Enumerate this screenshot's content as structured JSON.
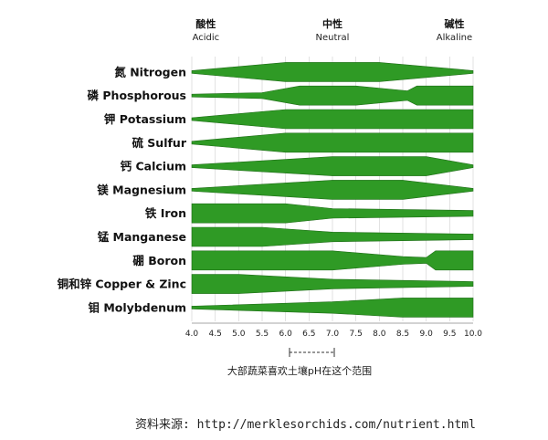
{
  "chart_data": {
    "type": "area",
    "title": "",
    "xlabel": "",
    "ylabel": "",
    "xlim": [
      4.0,
      10.0
    ],
    "x_ticks": [
      "4.0",
      "4.5",
      "5.0",
      "5.5",
      "6.0",
      "6.5",
      "7.0",
      "7.5",
      "8.0",
      "8.5",
      "9.0",
      "9.5",
      "10.0"
    ],
    "zones": [
      {
        "cn": "酸性",
        "en": "Acidic",
        "ph": 4.3
      },
      {
        "cn": "中性",
        "en": "Neutral",
        "ph": 7.0
      },
      {
        "cn": "碱性",
        "en": "Alkaline",
        "ph": 9.6
      }
    ],
    "range_caption": "大部蔬菜喜欢土壤pH在这个范围",
    "range_bracket": [
      5.5,
      7.0
    ],
    "grid": true,
    "series": [
      {
        "name": "氮 Nitrogen",
        "profile": [
          [
            4.0,
            0
          ],
          [
            6.0,
            1.0
          ],
          [
            8.0,
            1.0
          ],
          [
            10.0,
            0
          ]
        ]
      },
      {
        "name": "磷 Phosphorous",
        "profile": [
          [
            4.0,
            0
          ],
          [
            5.5,
            0.3
          ],
          [
            6.3,
            1.0
          ],
          [
            7.5,
            1.0
          ],
          [
            8.6,
            0.5
          ],
          [
            8.8,
            1.0
          ],
          [
            10.0,
            1.0
          ]
        ]
      },
      {
        "name": "钾 Potassium",
        "profile": [
          [
            4.0,
            0
          ],
          [
            6.0,
            1.0
          ],
          [
            10.0,
            1.0
          ]
        ]
      },
      {
        "name": "硫 Sulfur",
        "profile": [
          [
            4.0,
            0
          ],
          [
            6.0,
            1.0
          ],
          [
            10.0,
            1.0
          ]
        ]
      },
      {
        "name": "钙 Calcium",
        "profile": [
          [
            4.0,
            0
          ],
          [
            7.0,
            1.0
          ],
          [
            9.0,
            1.0
          ],
          [
            10.0,
            0
          ]
        ]
      },
      {
        "name": "镁 Magnesium",
        "profile": [
          [
            4.0,
            0
          ],
          [
            7.0,
            1.0
          ],
          [
            8.5,
            1.0
          ],
          [
            10.0,
            0
          ]
        ]
      },
      {
        "name": "铁 Iron",
        "profile": [
          [
            4.0,
            1.0
          ],
          [
            6.0,
            1.0
          ],
          [
            7.0,
            0.5
          ],
          [
            10.0,
            0.3
          ]
        ]
      },
      {
        "name": "锰 Manganese",
        "profile": [
          [
            4.0,
            1.0
          ],
          [
            5.5,
            1.0
          ],
          [
            7.0,
            0.5
          ],
          [
            10.0,
            0.3
          ]
        ]
      },
      {
        "name": "硼 Boron",
        "profile": [
          [
            4.0,
            1.0
          ],
          [
            7.0,
            1.0
          ],
          [
            8.5,
            0.4
          ],
          [
            9.0,
            0.3
          ],
          [
            9.2,
            1.0
          ],
          [
            10.0,
            1.0
          ]
        ]
      },
      {
        "name": "铜和锌 Copper & Zinc",
        "profile": [
          [
            4.0,
            1.0
          ],
          [
            5.0,
            1.0
          ],
          [
            7.0,
            0.5
          ],
          [
            10.0,
            0.25
          ]
        ]
      },
      {
        "name": "钼 Molybdenum",
        "profile": [
          [
            4.0,
            0
          ],
          [
            7.0,
            0.6
          ],
          [
            8.5,
            1.0
          ],
          [
            10.0,
            1.0
          ]
        ]
      }
    ]
  },
  "source": "资料来源: http://merklesorchids.com/nutrient.html"
}
